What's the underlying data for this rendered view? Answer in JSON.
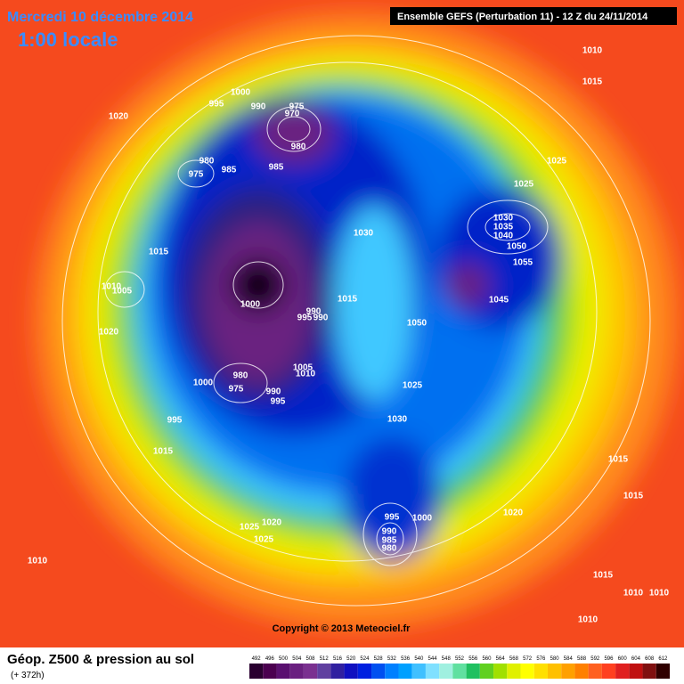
{
  "header": {
    "date": "Mercredi 10 décembre 2014",
    "time": "1:00 locale",
    "run": "Ensemble GEFS (Perturbation 11)  -  12 Z du 24/11/2014"
  },
  "map": {
    "isobar_labels": [
      1020,
      1000,
      995,
      990,
      975,
      970,
      980,
      980,
      975,
      985,
      985,
      1010,
      1015,
      1025,
      1025,
      1030,
      1035,
      1040,
      1050,
      1055,
      1045,
      1030,
      1015,
      1010,
      1005,
      1000,
      1015,
      990,
      995,
      990,
      1050,
      1020,
      1005,
      1010,
      1000,
      980,
      975,
      990,
      995,
      1025,
      995,
      1030,
      1015,
      1015,
      1015,
      1020,
      995,
      1000,
      990,
      985,
      980,
      1025,
      1020,
      1025,
      1010,
      1015,
      1010,
      1010,
      1010
    ],
    "copyright": "Copyright © 2013 Meteociel.fr"
  },
  "footer": {
    "title": "Géop. Z500 & pression au sol",
    "lead": "(+ 372h)",
    "scale": [
      492,
      496,
      500,
      504,
      508,
      512,
      516,
      520,
      524,
      528,
      532,
      536,
      540,
      544,
      548,
      552,
      556,
      560,
      564,
      568,
      572,
      576,
      580,
      584,
      588,
      592,
      596,
      600,
      604,
      608,
      612
    ]
  }
}
